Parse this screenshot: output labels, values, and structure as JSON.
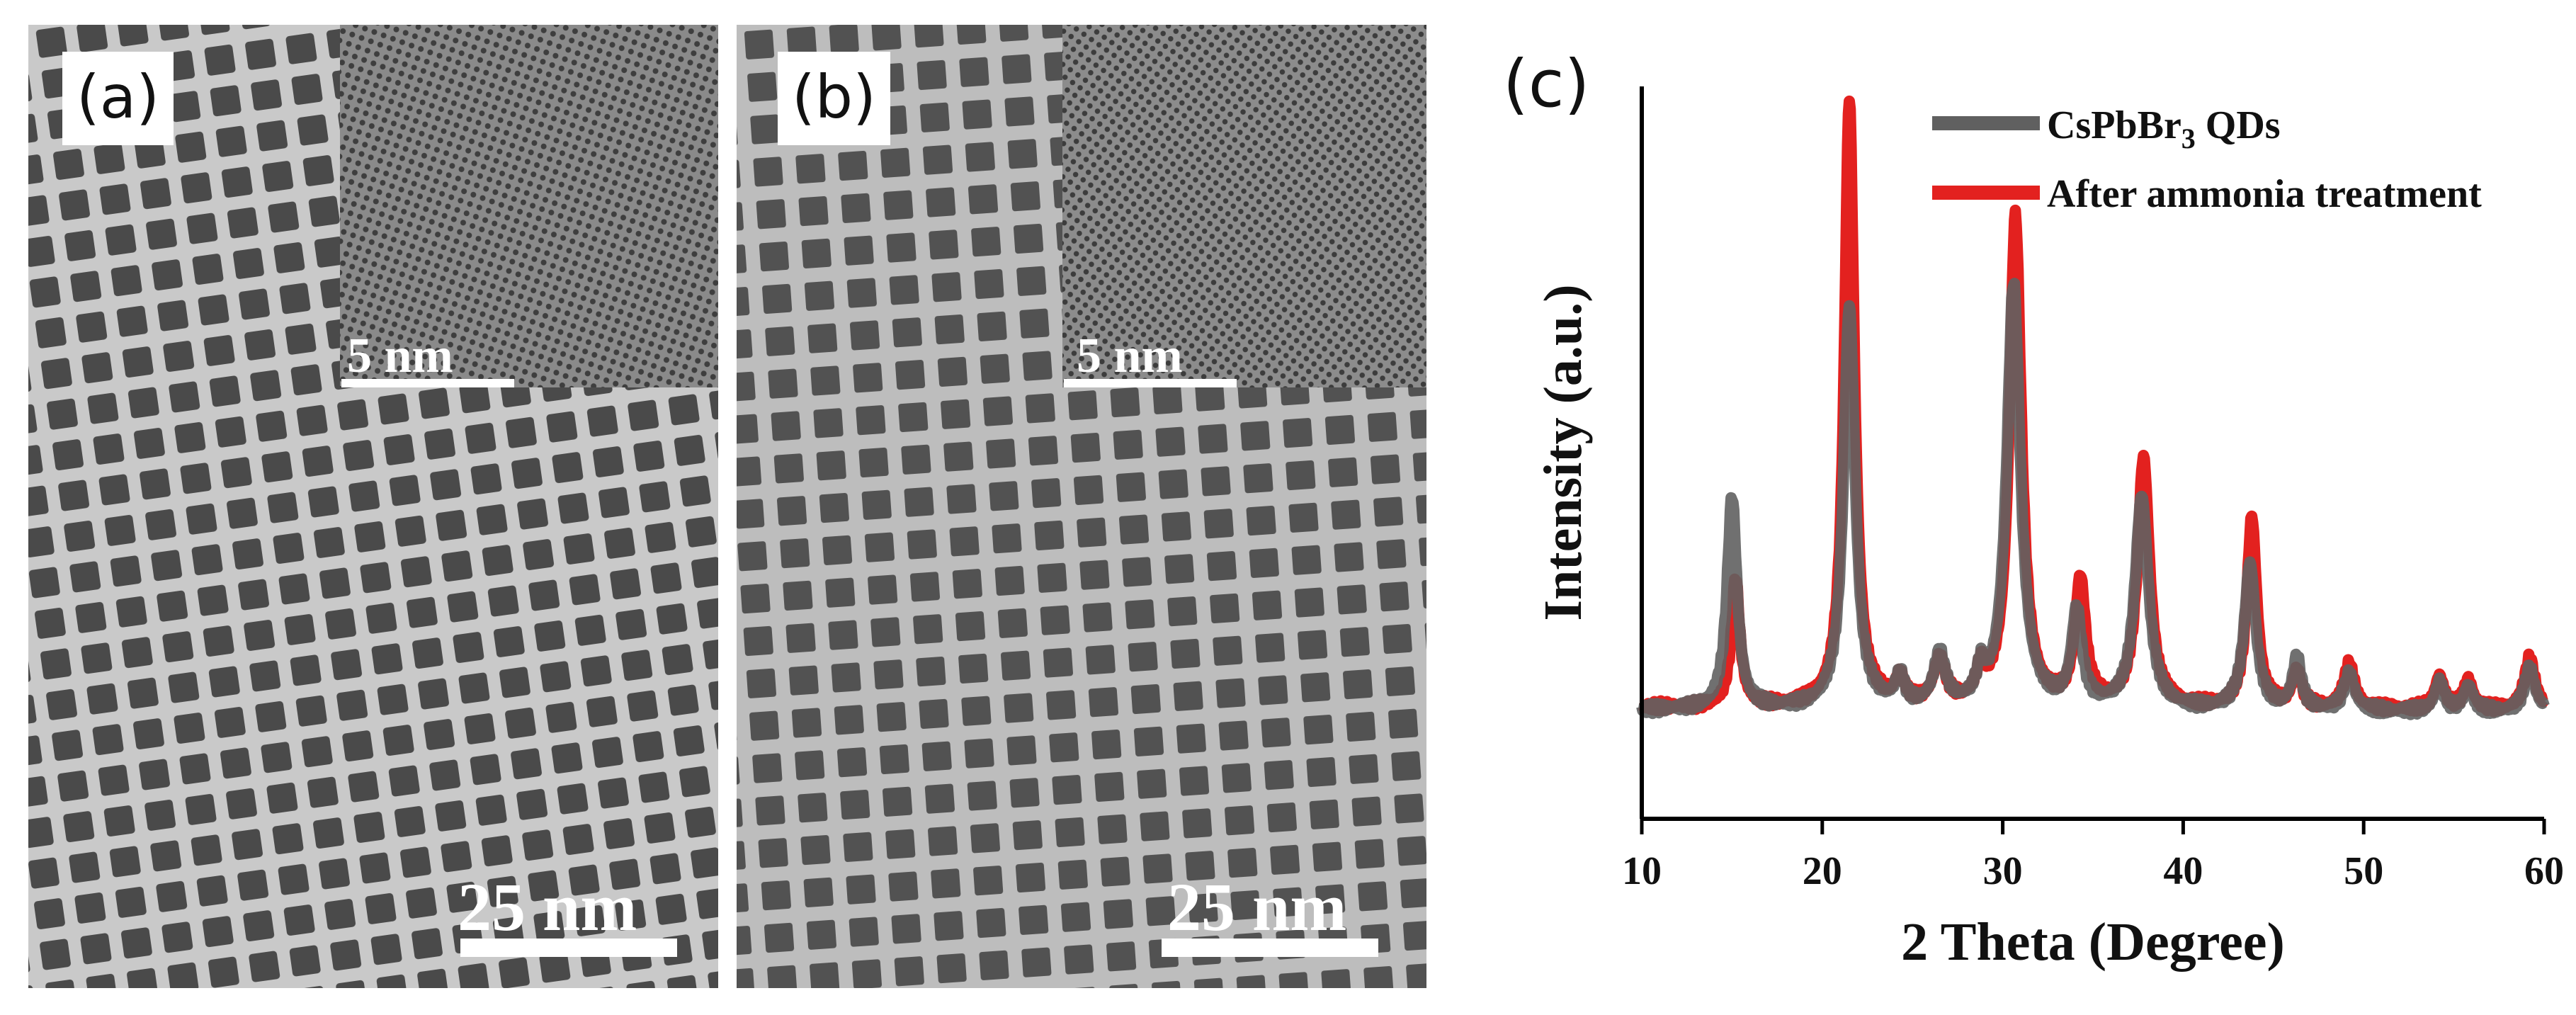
{
  "panels": [
    {
      "label": "(a)",
      "inset_scale": "5 nm",
      "main_scale": "25 nm"
    },
    {
      "label": "(b)",
      "inset_scale": "5 nm",
      "main_scale": "25 nm"
    }
  ],
  "colors": {
    "pristine": "#606060",
    "treated": "#e3211f",
    "axis": "#000000"
  },
  "chart_data": {
    "panel_label": "(c)",
    "type": "line",
    "xlabel": "2 Theta (Degree)",
    "ylabel": "Intensity (a.u.)",
    "xlim": [
      10,
      60
    ],
    "xticks": [
      10,
      20,
      30,
      40,
      50,
      60
    ],
    "ylim": [
      0,
      1
    ],
    "y_ticks_shown": false,
    "legend_position": "top-right",
    "series": [
      {
        "name": "After ammonia treatment",
        "color": "#e3211f",
        "baseline": 0.146,
        "endpoints": [
          [
            10,
            0.152
          ],
          [
            60,
            0.148
          ]
        ],
        "peaks": [
          [
            15.2,
            0.175,
            0.28
          ],
          [
            21.5,
            0.83,
            0.33
          ],
          [
            24.3,
            0.035,
            0.3
          ],
          [
            26.5,
            0.06,
            0.4
          ],
          [
            28.8,
            0.04,
            0.3
          ],
          [
            30.7,
            0.67,
            0.4
          ],
          [
            34.3,
            0.17,
            0.35
          ],
          [
            37.8,
            0.34,
            0.4
          ],
          [
            43.8,
            0.26,
            0.33
          ],
          [
            46.3,
            0.05,
            0.3
          ],
          [
            49.2,
            0.06,
            0.35
          ],
          [
            54.2,
            0.045,
            0.3
          ],
          [
            55.8,
            0.04,
            0.3
          ],
          [
            59.2,
            0.07,
            0.35
          ]
        ]
      },
      {
        "name": "CsPbBr",
        "name_sub": "3",
        "name_suffix": " QDs",
        "color": "#606060",
        "baseline": 0.142,
        "endpoints": [
          [
            10,
            0.148
          ],
          [
            60,
            0.145
          ]
        ],
        "peaks": [
          [
            15.0,
            0.29,
            0.33
          ],
          [
            21.5,
            0.55,
            0.38
          ],
          [
            24.3,
            0.04,
            0.3
          ],
          [
            26.5,
            0.07,
            0.4
          ],
          [
            28.8,
            0.04,
            0.3
          ],
          [
            30.6,
            0.58,
            0.45
          ],
          [
            34.1,
            0.13,
            0.35
          ],
          [
            37.7,
            0.29,
            0.45
          ],
          [
            43.7,
            0.2,
            0.38
          ],
          [
            46.3,
            0.07,
            0.3
          ],
          [
            49.2,
            0.05,
            0.35
          ],
          [
            54.2,
            0.04,
            0.3
          ],
          [
            55.8,
            0.035,
            0.3
          ],
          [
            59.2,
            0.06,
            0.35
          ]
        ]
      }
    ]
  }
}
